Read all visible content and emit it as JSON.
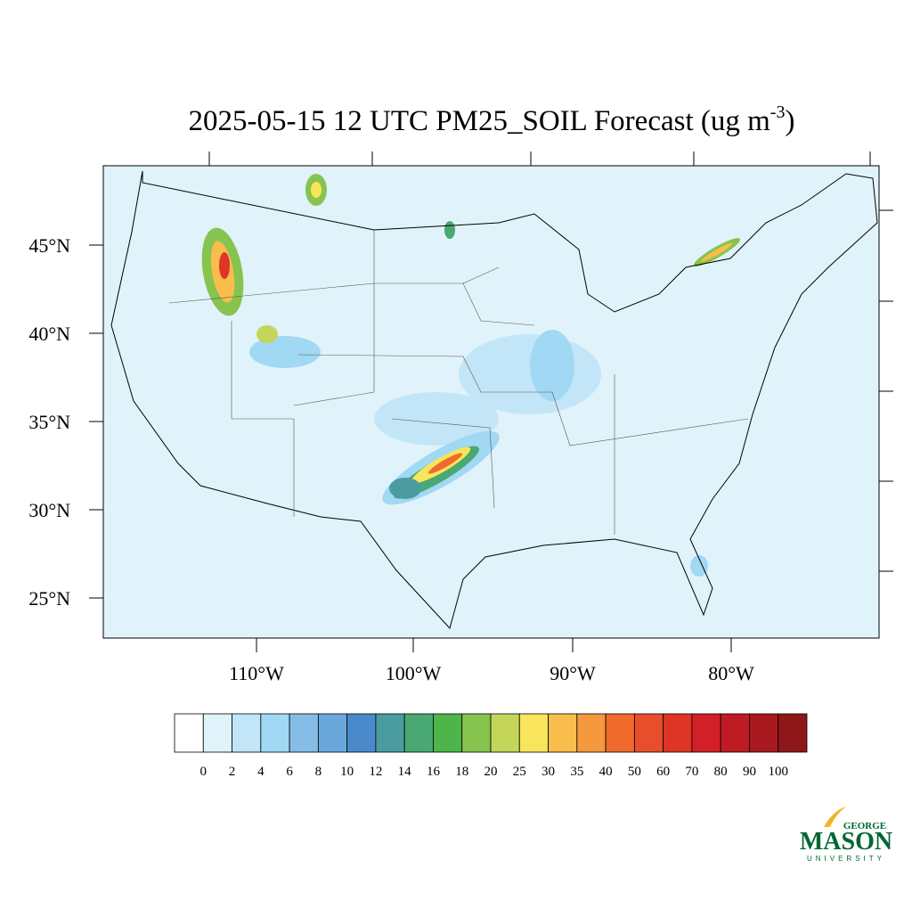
{
  "title": {
    "main": "2025-05-15 12 UTC PM25_SOIL Forecast (ug m",
    "superscript": "-3",
    "end": ")"
  },
  "map": {
    "lat_labels": [
      "45°N",
      "40°N",
      "35°N",
      "30°N",
      "25°N"
    ],
    "lon_labels": [
      "110°W",
      "100°W",
      "90°W",
      "80°W"
    ]
  },
  "colorbar": {
    "levels": [
      0,
      2,
      4,
      6,
      8,
      10,
      12,
      14,
      16,
      18,
      20,
      25,
      30,
      35,
      40,
      50,
      60,
      70,
      80,
      90,
      100
    ],
    "colors": [
      "#ffffff",
      "#e0f3fb",
      "#c2e6f8",
      "#a1d8f4",
      "#86bde6",
      "#6aa8dc",
      "#4a8acb",
      "#4b9ca0",
      "#4aa873",
      "#4db54a",
      "#86c44f",
      "#c3d65a",
      "#f8e55b",
      "#f8bd4c",
      "#f6983d",
      "#f06a2d",
      "#e84e2c",
      "#de3527",
      "#d31f27",
      "#bf1b25",
      "#a8191f",
      "#8e1719"
    ]
  },
  "logo": {
    "top": "GEORGE",
    "main": "MASON",
    "bottom": "UNIVERSITY"
  }
}
